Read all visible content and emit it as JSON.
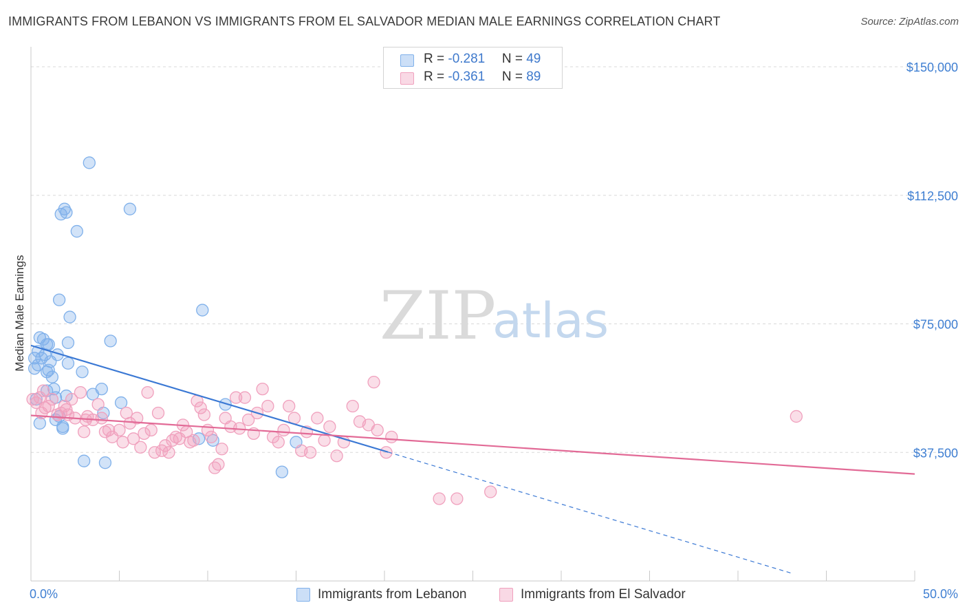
{
  "title": "IMMIGRANTS FROM LEBANON VS IMMIGRANTS FROM EL SALVADOR MEDIAN MALE EARNINGS CORRELATION CHART",
  "source": "Source: ZipAtlas.com",
  "watermark": {
    "zip": "ZIP",
    "atlas": "atlas"
  },
  "legend": {
    "rows": [
      {
        "r_label": "R = ",
        "r_value": "-0.281",
        "n_label": "N = ",
        "n_value": "49",
        "color": "#7fb0ea"
      },
      {
        "r_label": "R = ",
        "r_value": "-0.361",
        "n_label": "N = ",
        "n_value": "89",
        "color": "#f0a0bd"
      }
    ]
  },
  "bottom_legend": {
    "items": [
      {
        "label": "Immigrants from Lebanon",
        "color": "#7fb0ea"
      },
      {
        "label": "Immigrants from El Salvador",
        "color": "#f0a0bd"
      }
    ]
  },
  "chart_data": {
    "type": "scatter",
    "title": "IMMIGRANTS FROM LEBANON VS IMMIGRANTS FROM EL SALVADOR MEDIAN MALE EARNINGS CORRELATION CHART",
    "xlabel": "",
    "ylabel": "Median Male Earnings",
    "xlim": [
      0,
      50
    ],
    "ylim": [
      0,
      153000
    ],
    "x_tick_labels": [
      "0.0%",
      "50.0%"
    ],
    "y_ticks": [
      37500,
      75000,
      112500,
      150000
    ],
    "y_tick_labels": [
      "$37,500",
      "$75,000",
      "$112,500",
      "$150,000"
    ],
    "grid": true,
    "legend_position": "top-center",
    "series": [
      {
        "name": "Immigrants from Lebanon",
        "color": "#7fb0ea",
        "line_color": "#3a78d4",
        "r": -0.281,
        "n": 49,
        "trend": {
          "x0": 0,
          "y0": 68700,
          "x1": 20.2,
          "y1": 37600,
          "dashed_to_x": 43,
          "dashed_to_y": 2300
        },
        "points": [
          [
            0.2,
            62000
          ],
          [
            0.2,
            65000
          ],
          [
            0.3,
            53000
          ],
          [
            0.4,
            67000
          ],
          [
            0.5,
            71000
          ],
          [
            0.6,
            65000
          ],
          [
            0.7,
            70500
          ],
          [
            0.8,
            66000
          ],
          [
            0.9,
            69000
          ],
          [
            0.9,
            55500
          ],
          [
            1.0,
            69000
          ],
          [
            1.0,
            61500
          ],
          [
            1.1,
            64000
          ],
          [
            1.2,
            59500
          ],
          [
            1.3,
            56000
          ],
          [
            1.4,
            53500
          ],
          [
            1.4,
            47000
          ],
          [
            1.5,
            66000
          ],
          [
            1.6,
            82000
          ],
          [
            1.6,
            48000
          ],
          [
            1.7,
            107000
          ],
          [
            1.8,
            45000
          ],
          [
            1.9,
            108500
          ],
          [
            2.0,
            107500
          ],
          [
            2.0,
            54000
          ],
          [
            2.1,
            69500
          ],
          [
            2.1,
            63500
          ],
          [
            2.2,
            77000
          ],
          [
            2.6,
            102000
          ],
          [
            2.9,
            61000
          ],
          [
            3.0,
            35000
          ],
          [
            3.3,
            122000
          ],
          [
            3.5,
            54500
          ],
          [
            4.0,
            56000
          ],
          [
            4.1,
            49000
          ],
          [
            4.2,
            34500
          ],
          [
            4.5,
            70000
          ],
          [
            5.1,
            52000
          ],
          [
            5.6,
            108500
          ],
          [
            9.5,
            41500
          ],
          [
            9.7,
            79000
          ],
          [
            10.3,
            41000
          ],
          [
            11.0,
            51500
          ],
          [
            14.2,
            31800
          ],
          [
            15.0,
            40500
          ],
          [
            0.5,
            46000
          ],
          [
            0.9,
            61000
          ],
          [
            1.8,
            44500
          ],
          [
            0.4,
            63000
          ]
        ]
      },
      {
        "name": "Immigrants from El Salvador",
        "color": "#f0a0bd",
        "line_color": "#e26a96",
        "r": -0.361,
        "n": 89,
        "trend": {
          "x0": 0,
          "y0": 48300,
          "x1": 50,
          "y1": 31200
        },
        "points": [
          [
            0.1,
            53000
          ],
          [
            0.3,
            52000
          ],
          [
            0.5,
            53500
          ],
          [
            0.7,
            55500
          ],
          [
            0.8,
            50500
          ],
          [
            1.0,
            51000
          ],
          [
            1.2,
            53000
          ],
          [
            1.5,
            48500
          ],
          [
            1.7,
            49000
          ],
          [
            1.9,
            51000
          ],
          [
            2.1,
            48500
          ],
          [
            2.3,
            53000
          ],
          [
            2.5,
            47500
          ],
          [
            2.8,
            55000
          ],
          [
            3.0,
            43500
          ],
          [
            3.2,
            48000
          ],
          [
            3.5,
            47000
          ],
          [
            3.8,
            51500
          ],
          [
            4.0,
            47500
          ],
          [
            4.2,
            43500
          ],
          [
            4.4,
            44000
          ],
          [
            4.6,
            42000
          ],
          [
            5.0,
            44000
          ],
          [
            5.2,
            40500
          ],
          [
            5.4,
            49000
          ],
          [
            5.6,
            46000
          ],
          [
            5.8,
            41500
          ],
          [
            6.0,
            47500
          ],
          [
            6.2,
            39000
          ],
          [
            6.4,
            43000
          ],
          [
            6.6,
            55000
          ],
          [
            6.8,
            44000
          ],
          [
            7.0,
            37500
          ],
          [
            7.2,
            49000
          ],
          [
            7.4,
            38000
          ],
          [
            7.6,
            39500
          ],
          [
            7.8,
            37500
          ],
          [
            8.0,
            41000
          ],
          [
            8.2,
            42000
          ],
          [
            8.4,
            41500
          ],
          [
            8.6,
            45500
          ],
          [
            8.8,
            43500
          ],
          [
            9.0,
            40500
          ],
          [
            9.2,
            41000
          ],
          [
            9.4,
            52500
          ],
          [
            9.6,
            50500
          ],
          [
            9.8,
            48500
          ],
          [
            10.0,
            44000
          ],
          [
            10.2,
            42000
          ],
          [
            10.4,
            33000
          ],
          [
            10.6,
            34000
          ],
          [
            10.8,
            38500
          ],
          [
            11.0,
            47500
          ],
          [
            11.3,
            45000
          ],
          [
            11.6,
            53500
          ],
          [
            11.8,
            44500
          ],
          [
            12.1,
            53500
          ],
          [
            12.3,
            47000
          ],
          [
            12.6,
            43000
          ],
          [
            12.8,
            49000
          ],
          [
            13.1,
            56000
          ],
          [
            13.4,
            51000
          ],
          [
            13.7,
            42000
          ],
          [
            14.0,
            40500
          ],
          [
            14.3,
            44000
          ],
          [
            14.6,
            51000
          ],
          [
            14.9,
            47500
          ],
          [
            15.3,
            38000
          ],
          [
            15.6,
            43500
          ],
          [
            15.8,
            37500
          ],
          [
            16.2,
            47500
          ],
          [
            16.6,
            41000
          ],
          [
            16.9,
            45000
          ],
          [
            17.3,
            36500
          ],
          [
            17.7,
            40500
          ],
          [
            18.2,
            51000
          ],
          [
            18.6,
            46500
          ],
          [
            19.1,
            45500
          ],
          [
            19.6,
            44000
          ],
          [
            20.1,
            37500
          ],
          [
            20.4,
            42000
          ],
          [
            23.1,
            24000
          ],
          [
            24.1,
            24000
          ],
          [
            26.0,
            26000
          ],
          [
            43.3,
            48000
          ],
          [
            19.4,
            58000
          ],
          [
            0.6,
            49000
          ],
          [
            3.1,
            47000
          ],
          [
            2.0,
            50000
          ]
        ]
      }
    ]
  }
}
